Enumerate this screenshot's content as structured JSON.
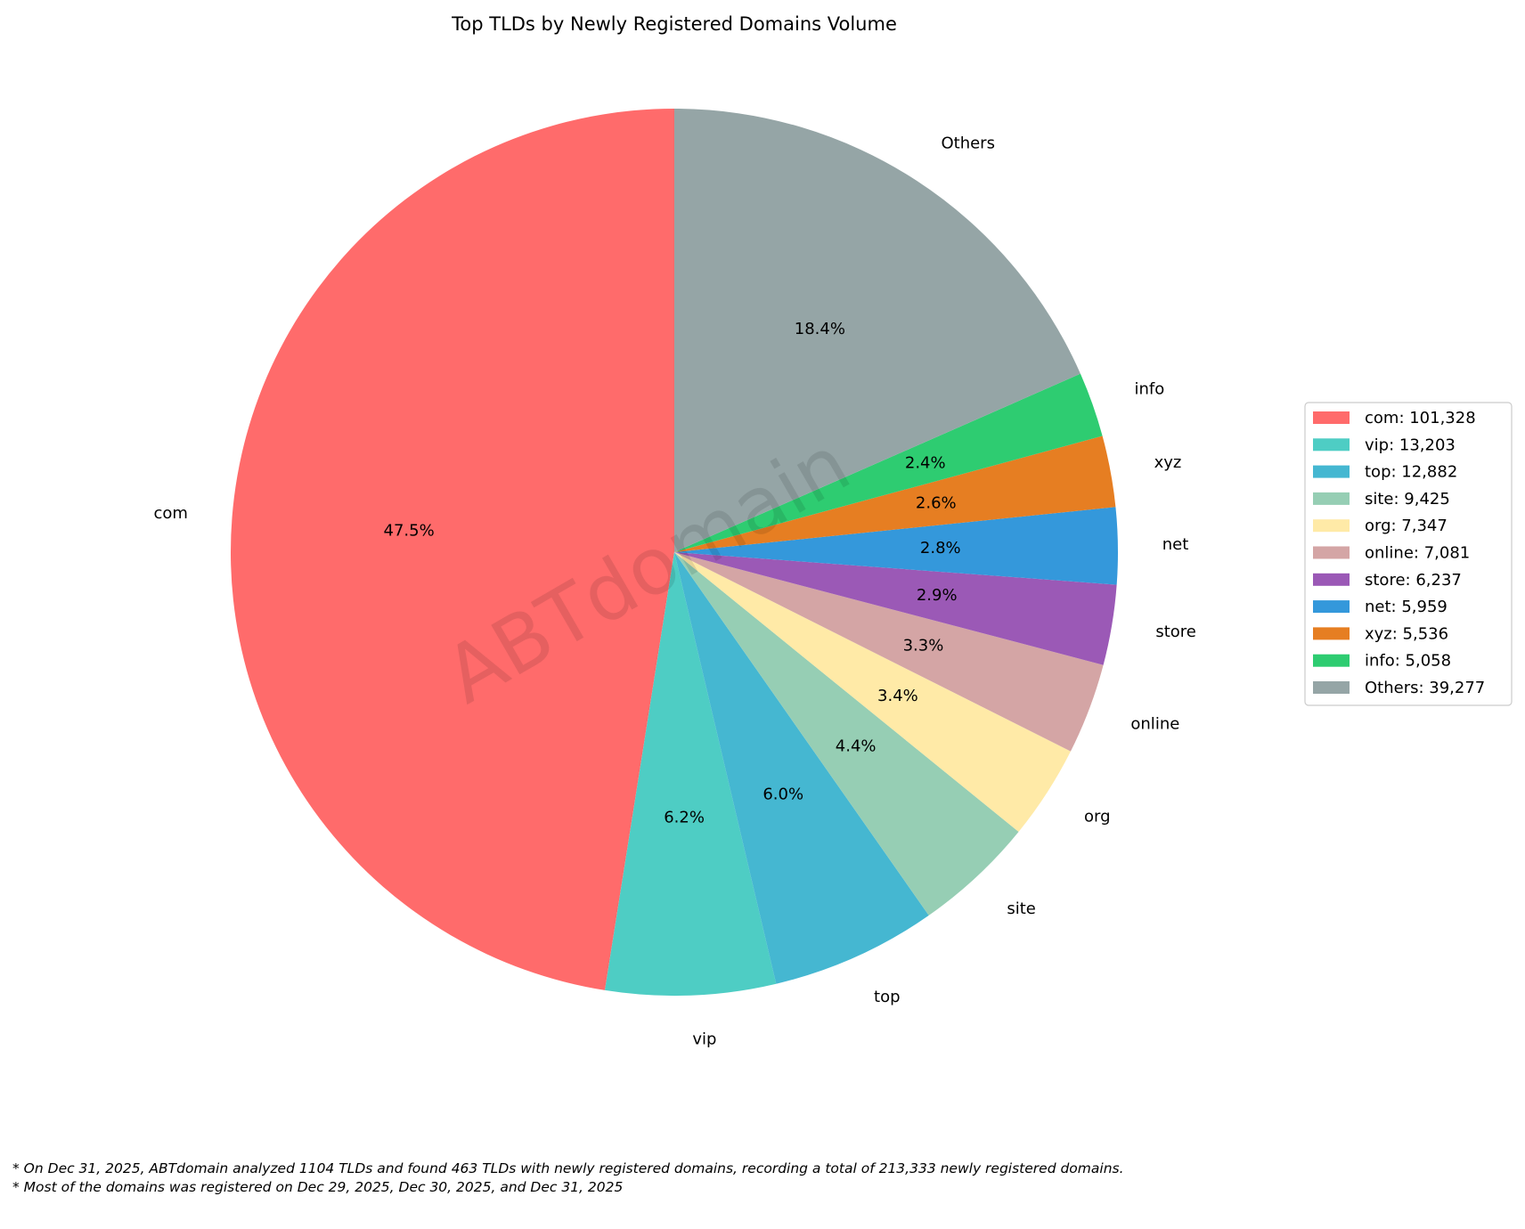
{
  "chart_data": {
    "type": "pie",
    "title": "Top TLDs by Newly Registered Domains Volume",
    "start_angle_deg": 90,
    "direction": "counterclockwise",
    "legend_placement": "right",
    "watermark": "ABTdomain",
    "slices": [
      {
        "label": "com",
        "value": 101328,
        "pct_label": "47.5%",
        "legend": "com: 101,328",
        "color": "#FF6B6B"
      },
      {
        "label": "vip",
        "value": 13203,
        "pct_label": "6.2%",
        "legend": "vip: 13,203",
        "color": "#4ECDC4"
      },
      {
        "label": "top",
        "value": 12882,
        "pct_label": "6.0%",
        "legend": "top: 12,882",
        "color": "#45B7D1"
      },
      {
        "label": "site",
        "value": 9425,
        "pct_label": "4.4%",
        "legend": "site: 9,425",
        "color": "#96CEB4"
      },
      {
        "label": "org",
        "value": 7347,
        "pct_label": "3.4%",
        "legend": "org: 7,347",
        "color": "#FFEAA7"
      },
      {
        "label": "online",
        "value": 7081,
        "pct_label": "3.3%",
        "legend": "online: 7,081",
        "color": "#D4A5A5"
      },
      {
        "label": "store",
        "value": 6237,
        "pct_label": "2.9%",
        "legend": "store: 6,237",
        "color": "#9B59B6"
      },
      {
        "label": "net",
        "value": 5959,
        "pct_label": "2.8%",
        "legend": "net: 5,959",
        "color": "#3498DB"
      },
      {
        "label": "xyz",
        "value": 5536,
        "pct_label": "2.6%",
        "legend": "xyz: 5,536",
        "color": "#E67E22"
      },
      {
        "label": "info",
        "value": 5058,
        "pct_label": "2.4%",
        "legend": "info: 5,058",
        "color": "#2ECC71"
      },
      {
        "label": "Others",
        "value": 39277,
        "pct_label": "18.4%",
        "legend": "Others: 39,277",
        "color": "#95A5A6"
      }
    ]
  },
  "footnotes": [
    "* On Dec 31, 2025, ABTdomain analyzed 1104 TLDs and found 463 TLDs with newly registered domains, recording a total of 213,333 newly registered domains.",
    "* Most of the domains was registered on Dec 29, 2025, Dec 30, 2025, and Dec 31, 2025"
  ]
}
